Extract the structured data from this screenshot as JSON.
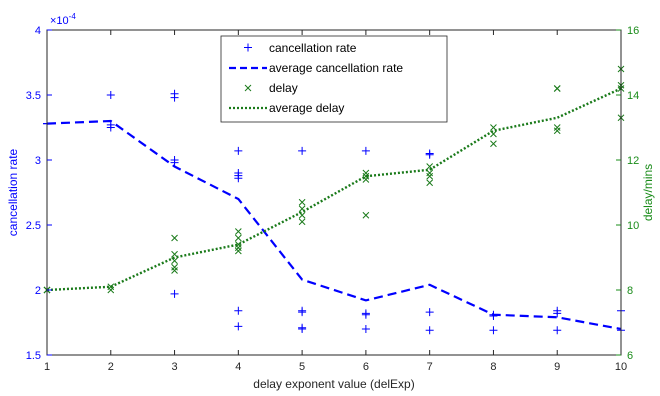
{
  "chart_data": {
    "type": "scatter",
    "xlabel": "delay exponent value (delExp)",
    "ylabel_left": "cancellation rate",
    "ylabel_right": "delay/mins",
    "left_multiplier": "×10",
    "left_multiplier_exp": "-4",
    "xlim": [
      1,
      10
    ],
    "ylim_left": [
      1.5,
      4
    ],
    "ylim_right": [
      6,
      16
    ],
    "x_ticks": [
      "1",
      "2",
      "3",
      "4",
      "5",
      "6",
      "7",
      "8",
      "9",
      "10"
    ],
    "y_left_ticks": [
      "1.5",
      "2",
      "2.5",
      "3",
      "3.5",
      "4"
    ],
    "y_right_ticks": [
      "6",
      "8",
      "10",
      "12",
      "14",
      "16"
    ],
    "grid": false,
    "legend_position": "top-center",
    "colors": {
      "left_axis": "#0000ff",
      "right_axis": "#1a8c1a",
      "delay_series": "#1a7a1a"
    },
    "series": [
      {
        "name": "cancellation rate",
        "axis": "left",
        "style": "plus-markers",
        "points": [
          [
            1,
            3.28
          ],
          [
            1,
            3.28
          ],
          [
            1,
            3.28
          ],
          [
            2,
            3.5
          ],
          [
            2,
            3.27
          ],
          [
            2,
            3.25
          ],
          [
            3,
            3.51
          ],
          [
            3,
            3.48
          ],
          [
            3,
            3.0
          ],
          [
            3,
            2.98
          ],
          [
            3,
            1.97
          ],
          [
            4,
            3.07
          ],
          [
            4,
            2.9
          ],
          [
            4,
            2.88
          ],
          [
            4,
            2.86
          ],
          [
            4,
            1.84
          ],
          [
            4,
            1.72
          ],
          [
            5,
            3.07
          ],
          [
            5,
            1.84
          ],
          [
            5,
            1.83
          ],
          [
            5,
            1.71
          ],
          [
            5,
            1.7
          ],
          [
            6,
            3.07
          ],
          [
            6,
            1.82
          ],
          [
            6,
            1.81
          ],
          [
            6,
            1.7
          ],
          [
            7,
            3.05
          ],
          [
            7,
            3.04
          ],
          [
            7,
            1.83
          ],
          [
            7,
            1.69
          ],
          [
            8,
            1.81
          ],
          [
            8,
            1.8
          ],
          [
            8,
            1.69
          ],
          [
            9,
            1.84
          ],
          [
            9,
            1.82
          ],
          [
            9,
            1.69
          ],
          [
            10,
            1.84
          ],
          [
            10,
            1.69
          ]
        ]
      },
      {
        "name": "average cancellation rate",
        "axis": "left",
        "style": "dashed-line",
        "x": [
          1,
          2,
          3,
          4,
          5,
          6,
          7,
          8,
          9,
          10
        ],
        "values": [
          3.28,
          3.3,
          2.95,
          2.7,
          2.08,
          1.92,
          2.04,
          1.81,
          1.79,
          1.7
        ]
      },
      {
        "name": "delay",
        "axis": "right",
        "style": "x-markers",
        "points": [
          [
            1,
            8.0
          ],
          [
            1,
            8.0
          ],
          [
            1,
            8.0
          ],
          [
            2,
            8.1
          ],
          [
            2,
            8.0
          ],
          [
            3,
            9.6
          ],
          [
            3,
            9.1
          ],
          [
            3,
            8.9
          ],
          [
            3,
            8.7
          ],
          [
            3,
            8.6
          ],
          [
            4,
            9.8
          ],
          [
            4,
            9.6
          ],
          [
            4,
            9.4
          ],
          [
            4,
            9.3
          ],
          [
            4,
            9.2
          ],
          [
            5,
            10.7
          ],
          [
            5,
            10.5
          ],
          [
            5,
            10.3
          ],
          [
            5,
            10.1
          ],
          [
            6,
            11.6
          ],
          [
            6,
            11.5
          ],
          [
            6,
            11.4
          ],
          [
            6,
            10.3
          ],
          [
            7,
            11.8
          ],
          [
            7,
            11.6
          ],
          [
            7,
            11.5
          ],
          [
            7,
            11.3
          ],
          [
            8,
            13.0
          ],
          [
            8,
            12.8
          ],
          [
            8,
            12.5
          ],
          [
            9,
            14.2
          ],
          [
            9,
            14.2
          ],
          [
            9,
            13.0
          ],
          [
            9,
            12.9
          ],
          [
            10,
            14.8
          ],
          [
            10,
            14.3
          ],
          [
            10,
            14.2
          ],
          [
            10,
            13.3
          ]
        ]
      },
      {
        "name": "average delay",
        "axis": "right",
        "style": "dotted-line",
        "x": [
          1,
          2,
          3,
          4,
          5,
          6,
          7,
          8,
          9,
          10
        ],
        "values": [
          8.0,
          8.1,
          9.0,
          9.4,
          10.4,
          11.5,
          11.7,
          12.9,
          13.3,
          14.2
        ]
      }
    ]
  }
}
